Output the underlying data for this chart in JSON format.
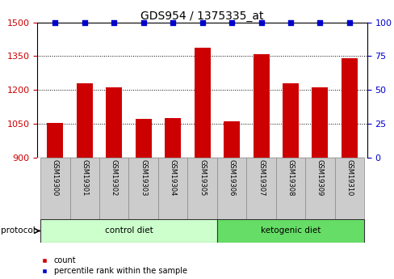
{
  "title": "GDS954 / 1375335_at",
  "samples": [
    "GSM19300",
    "GSM19301",
    "GSM19302",
    "GSM19303",
    "GSM19304",
    "GSM19305",
    "GSM19306",
    "GSM19307",
    "GSM19308",
    "GSM19309",
    "GSM19310"
  ],
  "bar_values": [
    1055,
    1230,
    1213,
    1072,
    1075,
    1388,
    1060,
    1358,
    1230,
    1213,
    1340
  ],
  "percentile_values": [
    100,
    100,
    100,
    100,
    100,
    100,
    100,
    100,
    100,
    100,
    100
  ],
  "bar_color": "#CC0000",
  "percentile_color": "#0000CC",
  "ylim_left": [
    900,
    1500
  ],
  "ylim_right": [
    0,
    100
  ],
  "yticks_left": [
    900,
    1050,
    1200,
    1350,
    1500
  ],
  "yticks_right": [
    0,
    25,
    50,
    75,
    100
  ],
  "groups": [
    {
      "label": "control diet",
      "n_items": 6,
      "color": "#ccffcc",
      "border_color": "#44aa44"
    },
    {
      "label": "ketogenic diet",
      "n_items": 5,
      "color": "#66dd66",
      "border_color": "#44aa44"
    }
  ],
  "protocol_label": "protocol",
  "bar_width": 0.55,
  "background_color": "#ffffff",
  "tick_area_color": "#cccccc",
  "title_fontsize": 10,
  "axis_fontsize": 8,
  "label_fontsize": 7
}
